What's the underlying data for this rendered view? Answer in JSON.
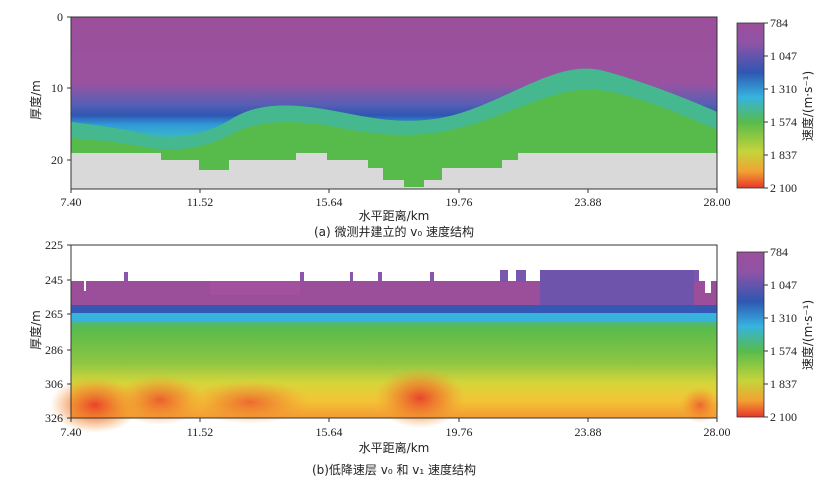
{
  "chart_data": [
    {
      "type": "heatmap",
      "caption": "(a) 微测井建立的 v₀ 速度结构",
      "xlabel": "水平距离/km",
      "ylabel": "厚度/m",
      "xticks": [
        "7.40",
        "11.52",
        "15.64",
        "19.76",
        "23.88",
        "28.00"
      ],
      "yticks": [
        "0",
        "10",
        "20"
      ],
      "xlim": [
        7.4,
        28.0
      ],
      "ylim": [
        0,
        24
      ],
      "colorbar": {
        "label": "速度/(m·s⁻¹)",
        "ticks": [
          "784",
          "1 047",
          "1 310",
          "1 574",
          "1 837",
          "2 100"
        ]
      },
      "colors": [
        "#9b4f9b",
        "#2f57b3",
        "#36b3e0",
        "#57bb4c",
        "#f1d23a",
        "#e8362a"
      ]
    },
    {
      "type": "heatmap",
      "caption": "(b)低降速层 v₀ 和 v₁ 速度结构",
      "xlabel": "水平距离/km",
      "ylabel": "厚度/m",
      "xticks": [
        "7.40",
        "11.52",
        "15.64",
        "19.76",
        "23.88",
        "28.00"
      ],
      "yticks": [
        "225",
        "245",
        "265",
        "286",
        "306",
        "326"
      ],
      "xlim": [
        7.4,
        28.0
      ],
      "ylim": [
        225,
        326
      ],
      "colorbar": {
        "label": "速度/(m·s⁻¹)",
        "ticks": [
          "784",
          "1 047",
          "1 310",
          "1 574",
          "1 837",
          "2 100"
        ]
      }
    }
  ]
}
